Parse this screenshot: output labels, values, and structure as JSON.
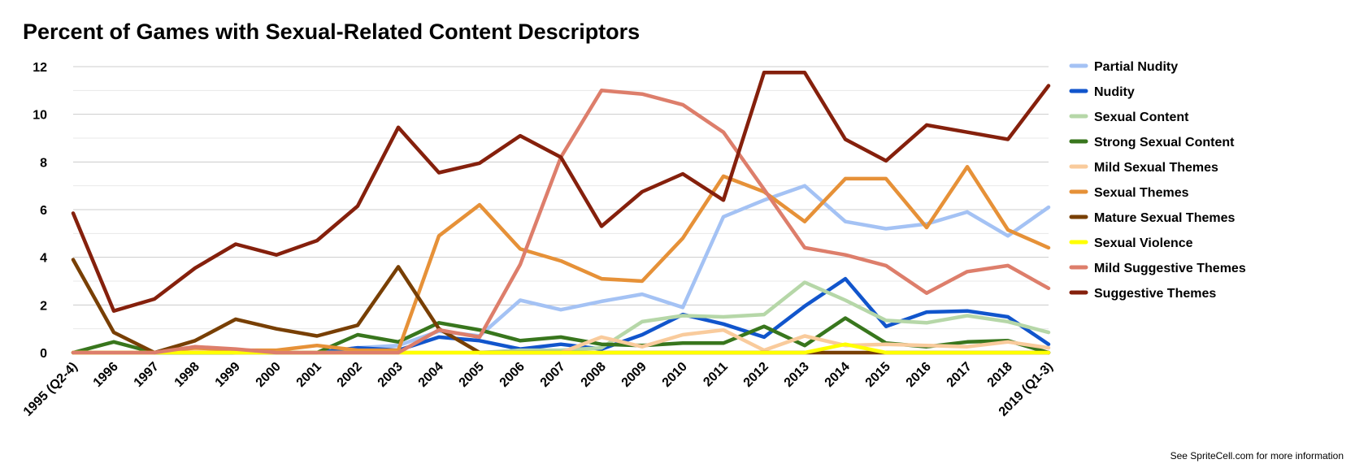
{
  "chart_data": {
    "type": "line",
    "title": "Percent of Games with Sexual-Related Content Descriptors",
    "xlabel": "",
    "ylabel": "",
    "ylim": [
      0,
      12
    ],
    "yticks": [
      0,
      2,
      4,
      6,
      8,
      10,
      12
    ],
    "grid": true,
    "legend": "right",
    "categories": [
      "1995 (Q2-4)",
      "1996",
      "1997",
      "1998",
      "1999",
      "2000",
      "2001",
      "2002",
      "2003",
      "2004",
      "2005",
      "2006",
      "2007",
      "2008",
      "2009",
      "2010",
      "2011",
      "2012",
      "2013",
      "2014",
      "2015",
      "2016",
      "2017",
      "2018",
      "2019 (Q1-3)"
    ],
    "series": [
      {
        "name": "Partial Nudity",
        "color": "#a4c2f4",
        "values": [
          0,
          0,
          0,
          0,
          0,
          0,
          0,
          0.2,
          0.3,
          0.9,
          0.7,
          2.2,
          1.8,
          2.15,
          2.45,
          1.9,
          5.7,
          6.4,
          7.0,
          5.5,
          5.2,
          5.4,
          5.9,
          4.9,
          6.1
        ]
      },
      {
        "name": "Nudity",
        "color": "#1155cc",
        "values": [
          0,
          0,
          0,
          0,
          0,
          0,
          0,
          0.2,
          0.1,
          0.65,
          0.5,
          0.15,
          0.35,
          0.15,
          0.75,
          1.6,
          1.2,
          0.65,
          1.95,
          3.1,
          1.1,
          1.7,
          1.75,
          1.5,
          0.35
        ]
      },
      {
        "name": "Sexual Content",
        "color": "#b6d7a8",
        "values": [
          0,
          0,
          0,
          0,
          0,
          0,
          0,
          0,
          0,
          0,
          0,
          0.1,
          0.1,
          0.2,
          1.3,
          1.55,
          1.5,
          1.6,
          2.95,
          2.2,
          1.35,
          1.25,
          1.55,
          1.3,
          0.85
        ]
      },
      {
        "name": "Strong Sexual Content",
        "color": "#38761d",
        "values": [
          0,
          0.45,
          0,
          0,
          0,
          0,
          0,
          0.75,
          0.45,
          1.25,
          0.95,
          0.5,
          0.65,
          0.35,
          0.3,
          0.4,
          0.4,
          1.1,
          0.3,
          1.45,
          0.4,
          0.25,
          0.45,
          0.5,
          0
        ]
      },
      {
        "name": "Mild Sexual Themes",
        "color": "#f9cb9c",
        "values": [
          0,
          0,
          0,
          0.1,
          0,
          0,
          0,
          0,
          0,
          0,
          0,
          0,
          0,
          0.65,
          0.25,
          0.75,
          0.95,
          0.1,
          0.7,
          0.3,
          0.35,
          0.3,
          0.25,
          0.45,
          0.2
        ]
      },
      {
        "name": "Sexual Themes",
        "color": "#e69138",
        "values": [
          0,
          0,
          0,
          0.2,
          0.1,
          0.1,
          0.3,
          0.1,
          0.1,
          4.9,
          6.2,
          4.35,
          3.85,
          3.1,
          3.0,
          4.8,
          7.4,
          6.75,
          5.5,
          7.3,
          7.3,
          5.25,
          7.8,
          5.15,
          4.4
        ]
      },
      {
        "name": "Mature Sexual Themes",
        "color": "#783f04",
        "values": [
          3.9,
          0.85,
          0,
          0.5,
          1.4,
          1.0,
          0.7,
          1.15,
          3.6,
          1.0,
          0,
          0,
          0,
          0,
          0,
          0,
          0,
          0,
          0,
          0,
          0,
          0,
          0,
          0,
          0
        ]
      },
      {
        "name": "Sexual Violence",
        "color": "#ffff00",
        "values": [
          0,
          0,
          0,
          0,
          0,
          0,
          0,
          0,
          0,
          0,
          0,
          0,
          0,
          0,
          0,
          0,
          0,
          0,
          0,
          0.35,
          0,
          0,
          0,
          0,
          0
        ]
      },
      {
        "name": "Mild Suggestive Themes",
        "color": "#dd7e6b",
        "values": [
          0,
          0,
          0,
          0.25,
          0.15,
          0,
          0,
          0,
          0,
          0.95,
          0.65,
          3.7,
          8.2,
          11.0,
          10.85,
          10.4,
          9.25,
          6.85,
          4.4,
          4.1,
          3.65,
          2.5,
          3.4,
          3.65,
          2.7
        ]
      },
      {
        "name": "Suggestive Themes",
        "color": "#85200c",
        "values": [
          5.85,
          1.75,
          2.25,
          3.55,
          4.55,
          4.1,
          4.7,
          6.15,
          9.45,
          7.55,
          7.95,
          9.1,
          8.2,
          5.3,
          6.75,
          7.5,
          6.4,
          11.75,
          11.75,
          8.95,
          8.05,
          9.55,
          9.25,
          8.95,
          11.2
        ]
      }
    ]
  },
  "footnote": "See SpriteCell.com for more information"
}
